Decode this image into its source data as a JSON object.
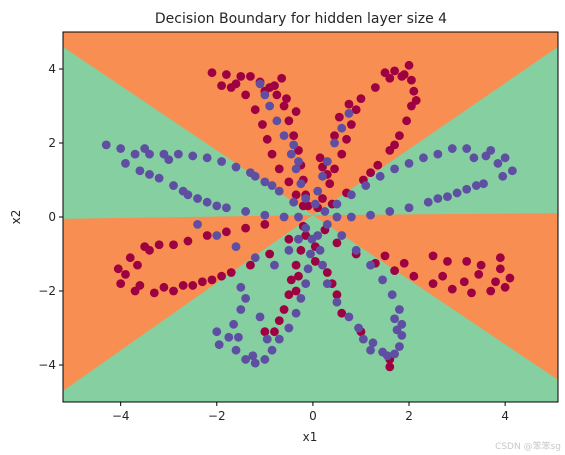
{
  "chart_data": {
    "type": "scatter",
    "title": "Decision Boundary for hidden layer size 4",
    "xlabel": "x1",
    "ylabel": "x2",
    "xlim": [
      -5.2,
      5.1
    ],
    "ylim": [
      -5.0,
      5.0
    ],
    "x_ticks": [
      -4,
      -2,
      0,
      2,
      4
    ],
    "y_ticks": [
      -4,
      -2,
      0,
      2,
      4
    ],
    "x_tick_labels": [
      "−4",
      "−2",
      "0",
      "2",
      "4"
    ],
    "y_tick_labels": [
      "−4",
      "−2",
      "0",
      "2",
      "4"
    ],
    "grid": false,
    "background": "filled decision regions",
    "region_colors": {
      "class_0": "#f88e51",
      "class_1": "#86cfa0"
    },
    "decision_regions": [
      {
        "class": "class_1",
        "polygon": [
          [
            -5.2,
            -0.05
          ],
          [
            0.0,
            0.05
          ],
          [
            -5.2,
            4.6
          ]
        ]
      },
      {
        "class": "class_1",
        "polygon": [
          [
            0.0,
            0.05
          ],
          [
            5.1,
            0.1
          ],
          [
            5.1,
            4.6
          ]
        ]
      },
      {
        "class": "class_1",
        "polygon": [
          [
            0.0,
            0.05
          ],
          [
            -5.2,
            -4.7
          ],
          [
            -5.2,
            -5.0
          ],
          [
            5.1,
            -5.0
          ],
          [
            5.1,
            -4.4
          ]
        ]
      }
    ],
    "series": [
      {
        "class": "0",
        "color": "#9e0142",
        "points": [
          [
            -2.1,
            3.9
          ],
          [
            -1.8,
            3.85
          ],
          [
            -1.6,
            3.6
          ],
          [
            -1.4,
            3.3
          ],
          [
            -1.2,
            2.9
          ],
          [
            -1.05,
            2.5
          ],
          [
            -0.95,
            2.1
          ],
          [
            -0.85,
            1.7
          ],
          [
            -0.7,
            1.3
          ],
          [
            -0.5,
            0.95
          ],
          [
            -0.35,
            0.6
          ],
          [
            -0.2,
            0.3
          ],
          [
            -1.7,
            3.5
          ],
          [
            -1.9,
            3.55
          ],
          [
            -1.5,
            3.8
          ],
          [
            -1.3,
            3.8
          ],
          [
            -1.1,
            3.65
          ],
          [
            -0.9,
            3.5
          ],
          [
            -0.75,
            3.3
          ],
          [
            -0.6,
            3.0
          ],
          [
            -0.5,
            2.6
          ],
          [
            -0.4,
            2.2
          ],
          [
            -0.3,
            1.8
          ],
          [
            -0.25,
            1.4
          ],
          [
            -0.2,
            1.0
          ],
          [
            -0.15,
            0.6
          ],
          [
            -0.1,
            0.3
          ],
          [
            -0.8,
            3.55
          ],
          [
            -1.0,
            3.4
          ],
          [
            -0.55,
            3.2
          ],
          [
            -0.35,
            2.85
          ],
          [
            -0.65,
            3.75
          ],
          [
            1.0,
            3.2
          ],
          [
            0.9,
            2.9
          ],
          [
            0.8,
            2.5
          ],
          [
            0.7,
            2.1
          ],
          [
            0.6,
            1.7
          ],
          [
            0.45,
            1.3
          ],
          [
            0.35,
            0.9
          ],
          [
            0.2,
            0.5
          ],
          [
            0.1,
            0.25
          ],
          [
            0.15,
            1.6
          ],
          [
            0.2,
            1.35
          ],
          [
            0.3,
            1.15
          ],
          [
            0.45,
            2.2
          ],
          [
            0.55,
            2.7
          ],
          [
            0.75,
            3.05
          ],
          [
            1.5,
            3.9
          ],
          [
            1.7,
            3.95
          ],
          [
            1.9,
            3.85
          ],
          [
            2.05,
            3.7
          ],
          [
            2.1,
            3.4
          ],
          [
            2.05,
            3.0
          ],
          [
            1.95,
            2.6
          ],
          [
            1.8,
            2.2
          ],
          [
            1.6,
            1.8
          ],
          [
            1.35,
            1.4
          ],
          [
            1.05,
            1.0
          ],
          [
            0.7,
            0.65
          ],
          [
            0.4,
            0.35
          ],
          [
            2.0,
            4.1
          ],
          [
            1.85,
            3.8
          ],
          [
            1.6,
            3.75
          ],
          [
            1.3,
            3.5
          ],
          [
            2.15,
            3.15
          ],
          [
            1.7,
            1.95
          ],
          [
            1.2,
            1.2
          ],
          [
            -2.6,
            -0.65
          ],
          [
            -2.9,
            -0.75
          ],
          [
            -3.2,
            -0.75
          ],
          [
            -3.5,
            -0.8
          ],
          [
            -3.8,
            -1.1
          ],
          [
            -4.05,
            -1.4
          ],
          [
            -4.0,
            -1.8
          ],
          [
            -3.7,
            -2.0
          ],
          [
            -3.3,
            -2.05
          ],
          [
            -2.9,
            -2.0
          ],
          [
            -2.5,
            -1.85
          ],
          [
            -2.1,
            -1.7
          ],
          [
            -1.7,
            -1.5
          ],
          [
            -1.3,
            -1.3
          ],
          [
            -0.9,
            -1.0
          ],
          [
            -0.5,
            -0.6
          ],
          [
            -0.2,
            -0.25
          ],
          [
            -3.4,
            -0.9
          ],
          [
            -3.65,
            -1.3
          ],
          [
            -3.9,
            -1.55
          ],
          [
            -3.6,
            -1.85
          ],
          [
            -3.1,
            -1.9
          ],
          [
            -2.7,
            -1.85
          ],
          [
            -2.3,
            -1.75
          ],
          [
            -1.9,
            -1.6
          ],
          [
            -2.2,
            -0.5
          ],
          [
            -1.8,
            -0.4
          ],
          [
            -1.4,
            -0.3
          ],
          [
            -1.0,
            -0.2
          ],
          [
            -0.7,
            -2.8
          ],
          [
            -0.6,
            -2.5
          ],
          [
            -0.5,
            -2.1
          ],
          [
            -0.45,
            -1.7
          ],
          [
            -0.35,
            -1.3
          ],
          [
            -0.25,
            -0.9
          ],
          [
            -0.15,
            -0.5
          ],
          [
            -0.8,
            -3.1
          ],
          [
            -1.0,
            -3.1
          ],
          [
            -0.3,
            -1.6
          ],
          [
            -0.35,
            -2.0
          ],
          [
            0.05,
            -1.2
          ],
          [
            0.05,
            -0.8
          ],
          [
            0.3,
            -1.5
          ],
          [
            0.4,
            -1.8
          ],
          [
            0.5,
            -2.1
          ],
          [
            0.6,
            -2.6
          ],
          [
            1.0,
            -3.1
          ],
          [
            1.6,
            -3.85
          ],
          [
            1.6,
            -4.05
          ],
          [
            2.5,
            -1.05
          ],
          [
            2.8,
            -1.2
          ],
          [
            3.2,
            -1.2
          ],
          [
            3.5,
            -1.3
          ],
          [
            3.9,
            -1.4
          ],
          [
            4.1,
            -1.65
          ],
          [
            4.0,
            -1.9
          ],
          [
            3.7,
            -2.0
          ],
          [
            3.3,
            -2.05
          ],
          [
            2.9,
            -1.95
          ],
          [
            2.5,
            -1.8
          ],
          [
            2.1,
            -1.6
          ],
          [
            1.7,
            -1.45
          ],
          [
            1.3,
            -1.25
          ],
          [
            0.9,
            -1.0
          ],
          [
            0.5,
            -0.7
          ],
          [
            0.25,
            -0.35
          ],
          [
            3.45,
            -1.55
          ],
          [
            3.8,
            -1.75
          ],
          [
            3.15,
            -1.75
          ],
          [
            2.7,
            -1.6
          ],
          [
            1.9,
            -1.25
          ],
          [
            1.5,
            -1.05
          ],
          [
            3.9,
            -1.1
          ]
        ]
      },
      {
        "class": "1",
        "color": "#5e4fa2",
        "points": [
          [
            -4.3,
            1.95
          ],
          [
            -4.0,
            1.85
          ],
          [
            -3.7,
            1.7
          ],
          [
            -3.4,
            1.7
          ],
          [
            -3.1,
            1.7
          ],
          [
            -2.8,
            1.7
          ],
          [
            -2.5,
            1.65
          ],
          [
            -2.2,
            1.6
          ],
          [
            -1.9,
            1.5
          ],
          [
            -1.6,
            1.35
          ],
          [
            -1.3,
            1.2
          ],
          [
            -1.0,
            0.95
          ],
          [
            -0.7,
            0.7
          ],
          [
            -0.4,
            0.4
          ],
          [
            -3.9,
            1.45
          ],
          [
            -3.6,
            1.25
          ],
          [
            -3.4,
            1.15
          ],
          [
            -3.2,
            1.05
          ],
          [
            -2.9,
            0.85
          ],
          [
            -2.6,
            0.6
          ],
          [
            -2.2,
            0.4
          ],
          [
            -1.8,
            0.25
          ],
          [
            -1.4,
            0.15
          ],
          [
            -1.0,
            0.05
          ],
          [
            -0.6,
            0.0
          ],
          [
            -0.3,
            0.0
          ],
          [
            -3.5,
            1.85
          ],
          [
            -3.0,
            1.55
          ],
          [
            -2.4,
            0.5
          ],
          [
            -2.0,
            0.3
          ],
          [
            -1.2,
            1.1
          ],
          [
            -0.85,
            0.85
          ],
          [
            -2.7,
            0.7
          ],
          [
            -1.1,
            3.6
          ],
          [
            -1.0,
            3.3
          ],
          [
            -0.9,
            3.0
          ],
          [
            -0.75,
            2.6
          ],
          [
            -0.6,
            2.2
          ],
          [
            -0.45,
            1.7
          ],
          [
            -0.35,
            1.3
          ],
          [
            -0.25,
            0.9
          ],
          [
            -0.15,
            0.5
          ],
          [
            -0.4,
            1.95
          ],
          [
            -0.3,
            1.5
          ],
          [
            0.75,
            2.8
          ],
          [
            0.6,
            2.4
          ],
          [
            0.45,
            2.0
          ],
          [
            0.3,
            1.5
          ],
          [
            0.2,
            1.1
          ],
          [
            0.1,
            0.7
          ],
          [
            0.05,
            0.35
          ],
          [
            3.2,
            1.85
          ],
          [
            2.9,
            1.85
          ],
          [
            2.6,
            1.7
          ],
          [
            2.3,
            1.6
          ],
          [
            2.0,
            1.45
          ],
          [
            1.7,
            1.3
          ],
          [
            1.4,
            1.1
          ],
          [
            1.1,
            0.85
          ],
          [
            0.8,
            0.6
          ],
          [
            0.5,
            0.35
          ],
          [
            0.25,
            0.15
          ],
          [
            3.7,
            1.8
          ],
          [
            4.0,
            1.6
          ],
          [
            4.15,
            1.25
          ],
          [
            3.95,
            1.1
          ],
          [
            3.55,
            0.9
          ],
          [
            3.2,
            0.75
          ],
          [
            2.8,
            0.55
          ],
          [
            2.4,
            0.4
          ],
          [
            2.0,
            0.25
          ],
          [
            1.6,
            0.15
          ],
          [
            1.2,
            0.05
          ],
          [
            0.8,
            0.0
          ],
          [
            0.5,
            0.0
          ],
          [
            3.35,
            1.6
          ],
          [
            3.6,
            1.65
          ],
          [
            3.85,
            1.45
          ],
          [
            3.4,
            0.85
          ],
          [
            3.0,
            0.65
          ],
          [
            2.6,
            0.5
          ],
          [
            -2.4,
            -0.2
          ],
          [
            -2.0,
            -0.5
          ],
          [
            -1.6,
            -0.8
          ],
          [
            -1.2,
            -1.1
          ],
          [
            -0.8,
            -1.3
          ],
          [
            -0.5,
            -0.9
          ],
          [
            -0.3,
            -0.6
          ],
          [
            -0.15,
            -0.3
          ],
          [
            -1.5,
            -1.9
          ],
          [
            -1.4,
            -2.2
          ],
          [
            -1.5,
            -2.5
          ],
          [
            -1.65,
            -2.9
          ],
          [
            -1.75,
            -3.25
          ],
          [
            -1.6,
            -3.6
          ],
          [
            -1.4,
            -3.85
          ],
          [
            -1.2,
            -3.95
          ],
          [
            -1.0,
            -3.85
          ],
          [
            -0.85,
            -3.6
          ],
          [
            -0.7,
            -3.3
          ],
          [
            -0.5,
            -3.0
          ],
          [
            -0.35,
            -2.6
          ],
          [
            -0.25,
            -2.2
          ],
          [
            -0.15,
            -1.8
          ],
          [
            -0.1,
            -1.4
          ],
          [
            -0.05,
            -1.0
          ],
          [
            -0.02,
            -0.6
          ],
          [
            -2.0,
            -3.1
          ],
          [
            -1.95,
            -3.45
          ],
          [
            -1.55,
            -3.25
          ],
          [
            -1.25,
            -3.75
          ],
          [
            -0.95,
            -3.3
          ],
          [
            -1.1,
            -2.7
          ],
          [
            0.1,
            -0.5
          ],
          [
            0.15,
            -0.9
          ],
          [
            0.2,
            -1.3
          ],
          [
            0.3,
            -1.8
          ],
          [
            0.5,
            -2.3
          ],
          [
            0.75,
            -2.7
          ],
          [
            0.95,
            -3.0
          ],
          [
            1.25,
            -3.4
          ],
          [
            1.45,
            -3.65
          ],
          [
            1.7,
            -3.7
          ],
          [
            1.8,
            -3.5
          ],
          [
            1.85,
            -3.2
          ],
          [
            1.85,
            -2.9
          ],
          [
            1.8,
            -2.5
          ],
          [
            1.65,
            -2.1
          ],
          [
            1.45,
            -1.7
          ],
          [
            1.2,
            -1.3
          ],
          [
            0.9,
            -0.9
          ],
          [
            0.6,
            -0.5
          ],
          [
            0.3,
            -0.2
          ],
          [
            1.2,
            -3.6
          ],
          [
            1.55,
            -3.75
          ],
          [
            1.75,
            -3.05
          ],
          [
            1.7,
            -2.75
          ],
          [
            1.05,
            -3.3
          ]
        ]
      }
    ]
  },
  "watermark": "CSDN @笨笨sg"
}
